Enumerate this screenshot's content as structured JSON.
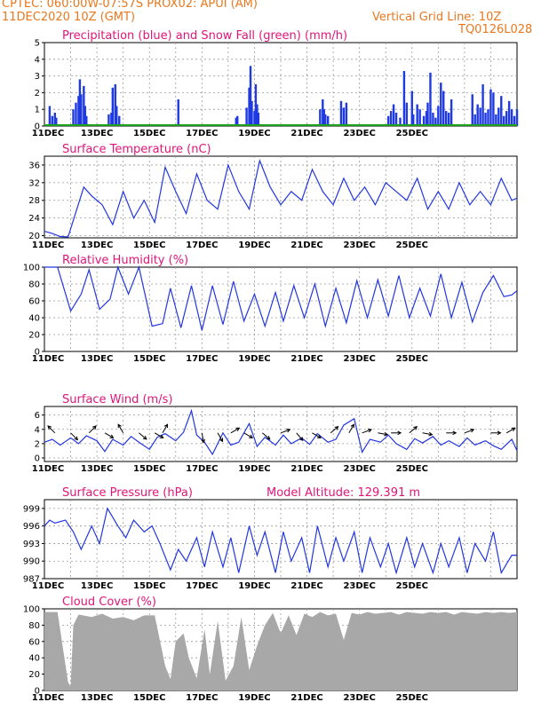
{
  "header": {
    "line1": "CPTEC:   060:00W-07:57S   PROX02: APUI (AM)",
    "line2": "11DEC2020 10Z (GMT)",
    "grid_note": "Vertical Grid Line: 10Z",
    "code": "TQ0126L028"
  },
  "colors": {
    "precip": "#1f3ae0",
    "snow": "#1aa01a",
    "line": "#2236e0",
    "cloud": "#a8a8a8",
    "title": "#e0157a",
    "header": "#e8781e"
  },
  "date_labels": [
    "11DEC",
    "13DEC",
    "15DEC",
    "17DEC",
    "19DEC",
    "21DEC",
    "23DEC",
    "25DEC"
  ],
  "chart_data": [
    {
      "type": "bar",
      "title": "Precipitation (blue) and Snow Fall (green) (mm/h)",
      "ylim": [
        0,
        5
      ],
      "yticks": [
        "0",
        "1",
        "2",
        "3",
        "4",
        "5"
      ],
      "series": [
        {
          "name": "Precipitation",
          "x": [
            0.2,
            0.3,
            0.4,
            0.45,
            1.1,
            1.2,
            1.3,
            1.35,
            1.4,
            1.5,
            1.55,
            1.6,
            2.45,
            2.55,
            2.6,
            2.7,
            2.75,
            2.85,
            5.1,
            7.3,
            7.35,
            7.7,
            7.8,
            7.85,
            7.9,
            8.0,
            8.05,
            8.1,
            8.15,
            10.5,
            10.6,
            10.65,
            10.7,
            10.8,
            11.3,
            11.4,
            11.5,
            13.1,
            13.2,
            13.3,
            13.4,
            13.55,
            13.7,
            13.8,
            14.0,
            14.05,
            14.2,
            14.3,
            14.45,
            14.55,
            14.6,
            14.7,
            14.8,
            14.9,
            15.0,
            15.1,
            15.2,
            15.3,
            15.4,
            15.5,
            16.3,
            16.4,
            16.5,
            16.6,
            16.7,
            16.8,
            16.9,
            17.0,
            17.1,
            17.2,
            17.3,
            17.4,
            17.5,
            17.6,
            17.7,
            17.8,
            17.9,
            18.0
          ],
          "values": [
            1.2,
            0.6,
            0.8,
            0.5,
            1.0,
            1.4,
            1.8,
            2.8,
            1.9,
            2.4,
            1.2,
            0.6,
            0.7,
            0.8,
            2.3,
            2.5,
            1.2,
            0.6,
            1.6,
            0.5,
            0.6,
            1.1,
            2.3,
            3.6,
            1.5,
            0.9,
            2.5,
            1.3,
            0.8,
            1.0,
            1.6,
            1.0,
            0.7,
            0.6,
            1.5,
            1.1,
            1.4,
            0.6,
            0.9,
            1.3,
            0.8,
            0.5,
            3.3,
            1.4,
            2.1,
            0.7,
            1.3,
            1.0,
            0.6,
            0.9,
            1.4,
            3.2,
            0.8,
            0.5,
            1.2,
            2.6,
            2.1,
            0.9,
            0.8,
            1.6,
            1.9,
            0.7,
            1.3,
            1.1,
            2.5,
            0.8,
            1.0,
            2.2,
            2.0,
            0.7,
            1.1,
            1.8,
            0.6,
            0.9,
            1.5,
            1.0,
            0.6,
            1.0
          ]
        },
        {
          "name": "Snow Fall",
          "x": [
            0,
            18
          ],
          "values": [
            0.05,
            0.05
          ]
        }
      ]
    },
    {
      "type": "line",
      "title": "Surface Temperature (nC)",
      "ylim": [
        19.5,
        38
      ],
      "yticks": [
        "20",
        "24",
        "28",
        "32",
        "36"
      ],
      "series": [
        {
          "name": "Temperature",
          "x": [
            0,
            0.3,
            0.6,
            0.9,
            1.5,
            1.8,
            2.2,
            2.6,
            3.0,
            3.4,
            3.8,
            4.2,
            4.6,
            5.0,
            5.4,
            5.8,
            6.2,
            6.6,
            7.0,
            7.4,
            7.8,
            8.2,
            8.6,
            9.0,
            9.4,
            9.8,
            10.2,
            10.6,
            11.0,
            11.4,
            11.8,
            12.2,
            12.6,
            13.0,
            13.4,
            13.8,
            14.2,
            14.6,
            15.0,
            15.4,
            15.8,
            16.2,
            16.6,
            17.0,
            17.4,
            17.8,
            18.0
          ],
          "values": [
            21,
            20.5,
            19.8,
            19.7,
            31,
            29,
            27,
            22.5,
            30,
            24,
            28,
            23,
            35.5,
            30,
            25,
            34,
            28,
            26,
            36,
            30,
            26,
            37,
            31,
            27,
            30,
            28,
            35,
            30,
            27,
            33,
            28,
            31,
            27,
            32,
            30,
            28,
            33,
            26,
            30,
            26,
            32,
            27,
            30,
            27,
            33,
            28,
            28.5
          ]
        }
      ]
    },
    {
      "type": "line",
      "title": "Relative Humidity (%)",
      "ylim": [
        0,
        100
      ],
      "yticks": [
        "0",
        "20",
        "40",
        "60",
        "80",
        "100"
      ],
      "series": [
        {
          "name": "Relative Humidity",
          "x": [
            0,
            0.3,
            0.5,
            1.0,
            1.4,
            1.7,
            2.1,
            2.5,
            2.8,
            3.2,
            3.6,
            4.1,
            4.5,
            4.8,
            5.2,
            5.6,
            6.0,
            6.4,
            6.8,
            7.2,
            7.6,
            8.0,
            8.4,
            8.8,
            9.1,
            9.5,
            9.9,
            10.3,
            10.7,
            11.1,
            11.5,
            11.9,
            12.3,
            12.7,
            13.1,
            13.5,
            13.9,
            14.3,
            14.7,
            15.1,
            15.5,
            15.9,
            16.3,
            16.7,
            17.1,
            17.5,
            17.8,
            18.0
          ],
          "values": [
            100,
            100,
            100,
            48,
            68,
            97,
            50,
            62,
            100,
            68,
            100,
            30,
            33,
            75,
            28,
            78,
            25,
            78,
            32,
            83,
            36,
            68,
            30,
            70,
            36,
            78,
            40,
            80,
            30,
            75,
            34,
            84,
            40,
            85,
            42,
            90,
            40,
            75,
            42,
            92,
            40,
            82,
            35,
            70,
            90,
            65,
            67,
            72
          ]
        }
      ]
    },
    {
      "type": "line",
      "title": "Surface Wind (m/s)",
      "ylim": [
        -0.5,
        7.2
      ],
      "yticks": [
        "0",
        "2",
        "4",
        "6"
      ],
      "series": [
        {
          "name": "Wind Speed",
          "x": [
            0,
            0.3,
            0.6,
            1.0,
            1.3,
            1.6,
            2.0,
            2.3,
            2.6,
            3.0,
            3.3,
            3.6,
            4.0,
            4.3,
            4.6,
            5.0,
            5.3,
            5.6,
            5.8,
            6.1,
            6.4,
            6.8,
            7.1,
            7.4,
            7.8,
            8.1,
            8.4,
            8.8,
            9.1,
            9.4,
            9.8,
            10.1,
            10.4,
            10.8,
            11.1,
            11.4,
            11.8,
            12.1,
            12.4,
            12.8,
            13.1,
            13.4,
            13.8,
            14.1,
            14.4,
            14.8,
            15.1,
            15.4,
            15.8,
            16.1,
            16.4,
            16.8,
            17.1,
            17.4,
            17.8,
            18.0
          ],
          "values": [
            2.2,
            2.6,
            1.8,
            2.8,
            2.0,
            3.1,
            2.4,
            0.9,
            2.6,
            1.8,
            3.0,
            2.2,
            1.2,
            2.9,
            3.4,
            2.4,
            3.6,
            6.6,
            3.2,
            2.2,
            0.5,
            3.5,
            1.8,
            2.2,
            4.8,
            1.6,
            2.9,
            1.8,
            3.2,
            2.0,
            2.8,
            1.9,
            3.4,
            2.2,
            2.6,
            4.6,
            5.5,
            0.8,
            2.6,
            2.2,
            3.2,
            2.0,
            1.2,
            2.7,
            2.1,
            3.0,
            1.8,
            2.4,
            1.6,
            2.8,
            1.8,
            2.4,
            1.7,
            1.2,
            2.6,
            1.0
          ]
        }
      ],
      "arrows": [
        {
          "x": 0.4,
          "angle": -135
        },
        {
          "x": 1.0,
          "angle": 45
        },
        {
          "x": 1.7,
          "angle": -45
        },
        {
          "x": 2.3,
          "angle": 30
        },
        {
          "x": 3.0,
          "angle": -120
        },
        {
          "x": 3.6,
          "angle": 40
        },
        {
          "x": 4.2,
          "angle": 30
        },
        {
          "x": 4.5,
          "angle": -60
        },
        {
          "x": 6.0,
          "angle": 80
        },
        {
          "x": 6.6,
          "angle": 60
        },
        {
          "x": 7.1,
          "angle": -30
        },
        {
          "x": 7.6,
          "angle": 30
        },
        {
          "x": 8.3,
          "angle": 40
        },
        {
          "x": 9.0,
          "angle": -20
        },
        {
          "x": 9.6,
          "angle": 50
        },
        {
          "x": 10.2,
          "angle": 30
        },
        {
          "x": 10.9,
          "angle": -40
        },
        {
          "x": 11.6,
          "angle": -60
        },
        {
          "x": 12.1,
          "angle": -20
        },
        {
          "x": 12.7,
          "angle": 10
        },
        {
          "x": 13.2,
          "angle": 0
        },
        {
          "x": 13.9,
          "angle": -40
        },
        {
          "x": 14.4,
          "angle": 10
        },
        {
          "x": 15.3,
          "angle": 0
        },
        {
          "x": 16.0,
          "angle": -20
        },
        {
          "x": 17.0,
          "angle": 0
        },
        {
          "x": 17.6,
          "angle": -30
        }
      ]
    },
    {
      "type": "line",
      "title": "Surface Pressure (hPa)",
      "subtitle": "Model Altitude: 129.391  m",
      "ylim": [
        987,
        1000.5
      ],
      "yticks": [
        "987",
        "990",
        "993",
        "996",
        "999"
      ],
      "series": [
        {
          "name": "Surface Pressure",
          "x": [
            0,
            0.2,
            0.4,
            0.8,
            1.1,
            1.4,
            1.8,
            2.1,
            2.4,
            2.8,
            3.1,
            3.4,
            3.8,
            4.1,
            4.4,
            4.8,
            5.1,
            5.4,
            5.8,
            6.1,
            6.4,
            6.8,
            7.1,
            7.4,
            7.8,
            8.1,
            8.4,
            8.8,
            9.1,
            9.4,
            9.8,
            10.1,
            10.4,
            10.8,
            11.1,
            11.4,
            11.8,
            12.1,
            12.4,
            12.8,
            13.1,
            13.4,
            13.8,
            14.1,
            14.4,
            14.8,
            15.1,
            15.4,
            15.8,
            16.1,
            16.4,
            16.8,
            17.1,
            17.4,
            17.8,
            18.0
          ],
          "values": [
            996,
            997,
            996.5,
            997,
            995,
            992,
            996,
            993,
            999,
            996,
            994,
            997,
            995,
            996,
            993,
            988.5,
            992,
            990,
            994,
            989,
            995,
            989,
            994,
            988,
            996,
            991,
            995,
            988,
            995,
            990,
            994,
            988,
            996,
            989,
            994,
            990,
            995,
            988,
            994,
            989,
            993,
            988,
            994,
            989,
            993,
            988,
            993,
            989,
            994,
            988,
            993,
            990,
            995,
            988,
            991,
            991
          ]
        }
      ]
    },
    {
      "type": "area",
      "title": "Cloud Cover (%)",
      "ylim": [
        0,
        100
      ],
      "yticks": [
        "0",
        "20",
        "40",
        "60",
        "80",
        "100"
      ],
      "series": [
        {
          "name": "Cloud Cover",
          "x": [
            0,
            0.5,
            0.9,
            1.0,
            1.1,
            1.3,
            1.8,
            2.2,
            2.6,
            3.0,
            3.4,
            3.8,
            4.2,
            4.6,
            4.8,
            5.0,
            5.3,
            5.5,
            5.8,
            6.1,
            6.3,
            6.6,
            6.9,
            7.2,
            7.5,
            7.8,
            8.1,
            8.4,
            8.7,
            9.0,
            9.3,
            9.6,
            9.9,
            10.2,
            10.5,
            10.8,
            11.1,
            11.4,
            11.7,
            12.0,
            12.3,
            12.6,
            12.9,
            13.2,
            13.5,
            13.8,
            14.1,
            14.4,
            14.7,
            15.0,
            15.3,
            15.6,
            15.9,
            16.2,
            16.5,
            16.8,
            17.1,
            17.4,
            17.7,
            18.0
          ],
          "values": [
            96,
            96,
            10,
            5,
            80,
            93,
            90,
            94,
            88,
            90,
            86,
            92,
            92,
            30,
            14,
            60,
            70,
            40,
            15,
            75,
            20,
            85,
            12,
            30,
            90,
            25,
            55,
            80,
            95,
            70,
            92,
            68,
            94,
            90,
            96,
            92,
            94,
            62,
            95,
            93,
            96,
            94,
            95,
            96,
            93,
            96,
            95,
            94,
            96,
            95,
            96,
            93,
            96,
            95,
            94,
            96,
            95,
            96,
            95,
            96
          ]
        }
      ]
    }
  ]
}
